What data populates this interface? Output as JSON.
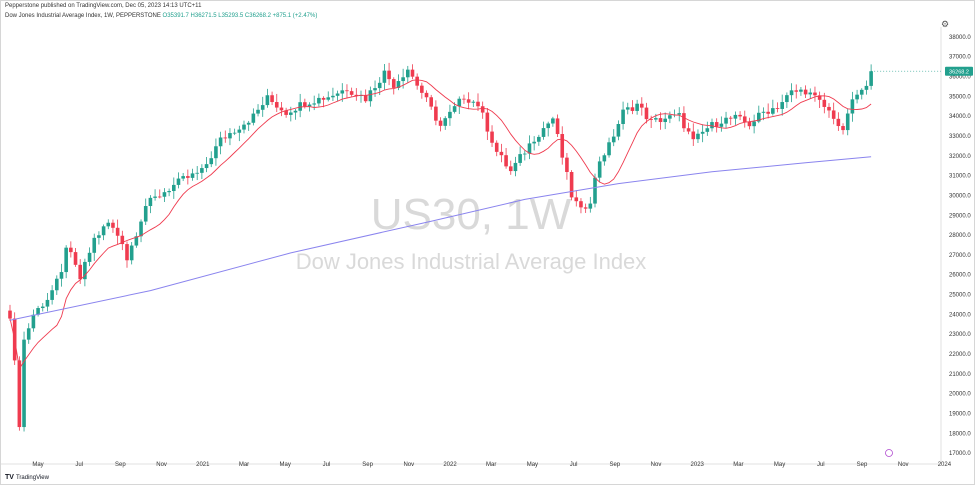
{
  "header": {
    "published": "Pepperstone published on TradingView.com, Dec 05, 2023 14:13 UTC+11",
    "symbol_line": "Dow Jones Industrial Average Index, 1W, PEPPERSTONE",
    "ohlc": "O35391.7 H36271.5 L35293.5 C36268.2 +875.1 (+2.47%)"
  },
  "watermark": {
    "ticker": "US30, 1W",
    "name": "Dow Jones Industrial Average Index"
  },
  "footer": {
    "brand": "TradingView"
  },
  "colors": {
    "up": "#22a08e",
    "down": "#ef3b4f",
    "ma_short": "#ef3b4f",
    "ma_long": "#8a84ee",
    "price_badge": "#22a08e"
  },
  "chart_data": {
    "type": "candlestick",
    "timeframe": "1W",
    "y_axis": {
      "min": 16500,
      "max": 38500,
      "position": "right",
      "ticks": [
        17000,
        18000,
        19000,
        20000,
        21000,
        22000,
        23000,
        24000,
        25000,
        26000,
        27000,
        28000,
        29000,
        30000,
        31000,
        32000,
        33000,
        34000,
        35000,
        36000,
        37000,
        38000
      ],
      "tick_labels": [
        "17000.0",
        "18000.0",
        "19000.0",
        "20000.0",
        "21000.0",
        "22000.0",
        "23000.0",
        "24000.0",
        "25000.0",
        "26000.0",
        "27000.0",
        "28000.0",
        "29000.0",
        "30000.0",
        "31000.0",
        "32000.0",
        "33000.0",
        "34000.0",
        "35000.0",
        "36000.0",
        "37000.0",
        "38000.0"
      ]
    },
    "x_axis": {
      "labels": [
        "May",
        "Jul",
        "Sep",
        "Nov",
        "2021",
        "Mar",
        "May",
        "Jul",
        "Sep",
        "Nov",
        "2022",
        "Mar",
        "May",
        "Jul",
        "Sep",
        "Nov",
        "2023",
        "Mar",
        "May",
        "Jul",
        "Sep",
        "Nov",
        "2024"
      ]
    },
    "last_price": 36268.2,
    "last_price_label": "36268.2",
    "anchors": [
      {
        "w": 0,
        "c": 24000
      },
      {
        "w": 1,
        "c": 21500
      },
      {
        "w": 2,
        "c": 18500
      },
      {
        "w": 3,
        "c": 22700
      },
      {
        "w": 5,
        "c": 24000
      },
      {
        "w": 8,
        "c": 24800
      },
      {
        "w": 11,
        "c": 26000
      },
      {
        "w": 12,
        "c": 27500
      },
      {
        "w": 15,
        "c": 25800
      },
      {
        "w": 18,
        "c": 27800
      },
      {
        "w": 21,
        "c": 28600
      },
      {
        "w": 24,
        "c": 27700
      },
      {
        "w": 25,
        "c": 26800
      },
      {
        "w": 29,
        "c": 29500
      },
      {
        "w": 33,
        "c": 30200
      },
      {
        "w": 37,
        "c": 30800
      },
      {
        "w": 41,
        "c": 31200
      },
      {
        "w": 45,
        "c": 32800
      },
      {
        "w": 52,
        "c": 34000
      },
      {
        "w": 55,
        "c": 34900
      },
      {
        "w": 59,
        "c": 34200
      },
      {
        "w": 63,
        "c": 34700
      },
      {
        "w": 68,
        "c": 35000
      },
      {
        "w": 72,
        "c": 35400
      },
      {
        "w": 76,
        "c": 34900
      },
      {
        "w": 80,
        "c": 36200
      },
      {
        "w": 82,
        "c": 35600
      },
      {
        "w": 85,
        "c": 36400
      },
      {
        "w": 88,
        "c": 35200
      },
      {
        "w": 92,
        "c": 33500
      },
      {
        "w": 97,
        "c": 35000
      },
      {
        "w": 100,
        "c": 34600
      },
      {
        "w": 104,
        "c": 32200
      },
      {
        "w": 107,
        "c": 31200
      },
      {
        "w": 109,
        "c": 31900
      },
      {
        "w": 112,
        "c": 32900
      },
      {
        "w": 116,
        "c": 33900
      },
      {
        "w": 120,
        "c": 30000
      },
      {
        "w": 122,
        "c": 29200
      },
      {
        "w": 124,
        "c": 29800
      },
      {
        "w": 126,
        "c": 31800
      },
      {
        "w": 128,
        "c": 32500
      },
      {
        "w": 131,
        "c": 34200
      },
      {
        "w": 134,
        "c": 34600
      },
      {
        "w": 137,
        "c": 33700
      },
      {
        "w": 140,
        "c": 33900
      },
      {
        "w": 143,
        "c": 34000
      },
      {
        "w": 146,
        "c": 32700
      },
      {
        "w": 149,
        "c": 33400
      },
      {
        "w": 152,
        "c": 33800
      },
      {
        "w": 155,
        "c": 33900
      },
      {
        "w": 158,
        "c": 33600
      },
      {
        "w": 161,
        "c": 34200
      },
      {
        "w": 164,
        "c": 34500
      },
      {
        "w": 167,
        "c": 35200
      },
      {
        "w": 170,
        "c": 35300
      },
      {
        "w": 173,
        "c": 34700
      },
      {
        "w": 176,
        "c": 34000
      },
      {
        "w": 178,
        "c": 33100
      },
      {
        "w": 179,
        "c": 34200
      },
      {
        "w": 181,
        "c": 35100
      },
      {
        "w": 183,
        "c": 35390
      },
      {
        "w": 184,
        "c": 36268
      }
    ],
    "ma_short": {
      "type": "line",
      "desc": "short moving average"
    },
    "ma_long": {
      "type": "line",
      "points": [
        {
          "w": 0,
          "v": 23700
        },
        {
          "w": 30,
          "v": 25200
        },
        {
          "w": 60,
          "v": 27100
        },
        {
          "w": 90,
          "v": 28700
        },
        {
          "w": 110,
          "v": 29800
        },
        {
          "w": 130,
          "v": 30600
        },
        {
          "w": 150,
          "v": 31200
        },
        {
          "w": 170,
          "v": 31650
        },
        {
          "w": 184,
          "v": 31950
        }
      ]
    }
  }
}
